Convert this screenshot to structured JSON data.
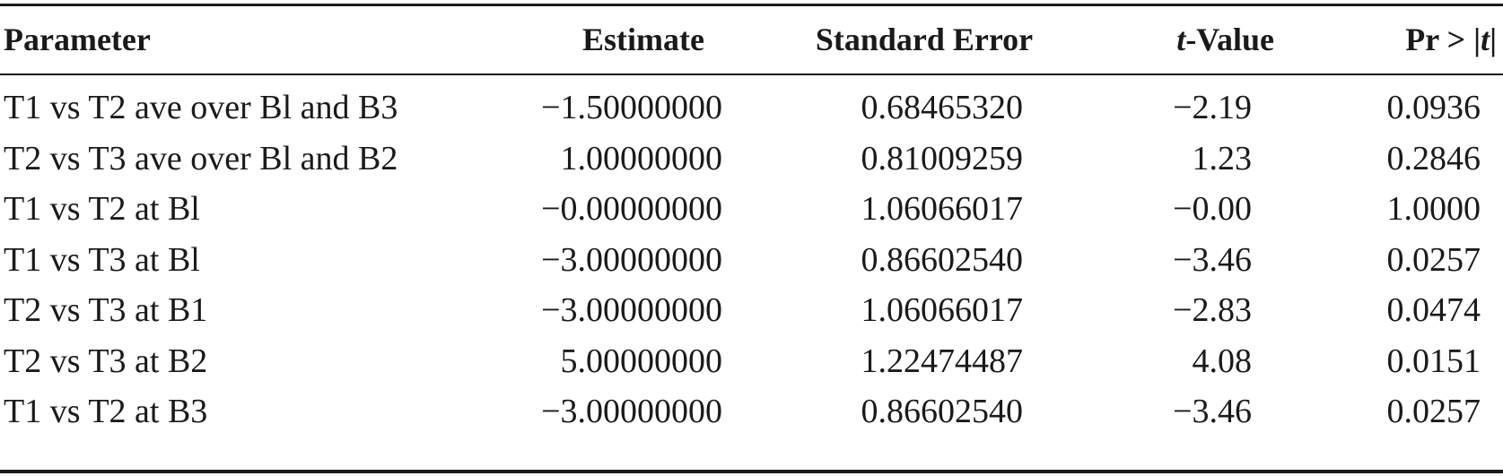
{
  "table": {
    "headers": {
      "parameter": "Parameter",
      "estimate": "Estimate",
      "std_error": "Standard Error",
      "t_value_italic": "t",
      "t_value_rest": "-Value",
      "pr_prefix": "Pr > |",
      "pr_t": "t",
      "pr_suffix": "|"
    },
    "rows": [
      {
        "parameter": "T1 vs T2 ave over Bl and B3",
        "estimate": "−1.50000000",
        "std_error": "0.68465320",
        "t_value": "−2.19",
        "p_value": "0.0936"
      },
      {
        "parameter": "T2 vs T3 ave over Bl and B2",
        "estimate": "1.00000000",
        "std_error": "0.81009259",
        "t_value": "1.23",
        "p_value": "0.2846"
      },
      {
        "parameter": "T1 vs T2 at Bl",
        "estimate": "−0.00000000",
        "std_error": "1.06066017",
        "t_value": "−0.00",
        "p_value": "1.0000"
      },
      {
        "parameter": "T1 vs T3 at Bl",
        "estimate": "−3.00000000",
        "std_error": "0.86602540",
        "t_value": "−3.46",
        "p_value": "0.0257"
      },
      {
        "parameter": "T2 vs T3 at B1",
        "estimate": "−3.00000000",
        "std_error": "1.06066017",
        "t_value": "−2.83",
        "p_value": "0.0474"
      },
      {
        "parameter": "T2 vs T3 at B2",
        "estimate": "5.00000000",
        "std_error": "1.22474487",
        "t_value": "4.08",
        "p_value": "0.0151"
      },
      {
        "parameter": "T1 vs T2 at B3",
        "estimate": "−3.00000000",
        "std_error": "0.86602540",
        "t_value": "−3.46",
        "p_value": "0.0257"
      }
    ]
  }
}
